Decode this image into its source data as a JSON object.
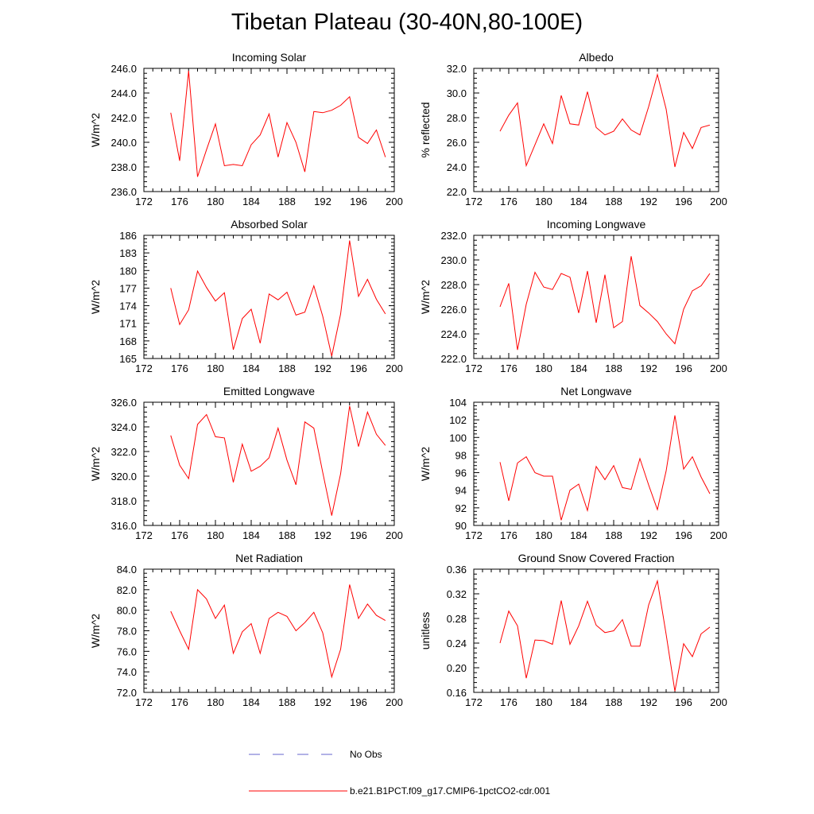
{
  "title": "Tibetan Plateau (30-40N,80-100E)",
  "colors": {
    "series": "#ff0000",
    "obs": "#6666cc",
    "axis": "#000000"
  },
  "legend": {
    "entries": [
      {
        "label": "No Obs",
        "style": "dashed",
        "color": "#6666cc"
      },
      {
        "label": "b.e21.B1PCT.f09_g17.CMIP6-1pctCO2-cdr.001",
        "style": "solid",
        "color": "#ff0000"
      }
    ]
  },
  "chart_data": [
    {
      "type": "line",
      "title": "Incoming Solar",
      "ylabel": "W/m^2",
      "xlim": [
        172,
        200
      ],
      "xticks": [
        "172",
        "176",
        "180",
        "184",
        "188",
        "192",
        "196",
        "200"
      ],
      "ylim": [
        236,
        246
      ],
      "yticks": [
        "236.0",
        "238.0",
        "240.0",
        "242.0",
        "244.0",
        "246.0"
      ],
      "x": [
        175,
        176,
        177,
        178,
        179,
        180,
        181,
        182,
        183,
        184,
        185,
        186,
        187,
        188,
        189,
        190,
        191,
        192,
        193,
        194,
        195,
        196,
        197,
        198,
        199
      ],
      "series": [
        {
          "values": [
            242.4,
            238.5,
            245.8,
            237.2,
            239.4,
            241.5,
            238.1,
            238.2,
            238.1,
            239.8,
            240.6,
            242.3,
            238.8,
            241.6,
            240.0,
            237.6,
            242.5,
            242.4,
            242.6,
            243.0,
            243.7,
            240.4,
            239.9,
            241.0,
            238.8
          ]
        }
      ]
    },
    {
      "type": "line",
      "title": "Albedo",
      "ylabel": "% reflected",
      "xlim": [
        172,
        200
      ],
      "xticks": [
        "172",
        "176",
        "180",
        "184",
        "188",
        "192",
        "196",
        "200"
      ],
      "ylim": [
        22,
        32
      ],
      "yticks": [
        "22.0",
        "24.0",
        "26.0",
        "28.0",
        "30.0",
        "32.0"
      ],
      "x": [
        175,
        176,
        177,
        178,
        179,
        180,
        181,
        182,
        183,
        184,
        185,
        186,
        187,
        188,
        189,
        190,
        191,
        192,
        193,
        194,
        195,
        196,
        197,
        198,
        199
      ],
      "series": [
        {
          "values": [
            26.9,
            28.2,
            29.2,
            24.1,
            25.8,
            27.5,
            25.9,
            29.8,
            27.5,
            27.4,
            30.1,
            27.2,
            26.6,
            26.9,
            27.9,
            27.0,
            26.6,
            28.9,
            31.5,
            28.7,
            24.0,
            26.8,
            25.5,
            27.2,
            27.4
          ]
        }
      ]
    },
    {
      "type": "line",
      "title": "Absorbed Solar",
      "ylabel": "W/m^2",
      "xlim": [
        172,
        200
      ],
      "xticks": [
        "172",
        "176",
        "180",
        "184",
        "188",
        "192",
        "196",
        "200"
      ],
      "ylim": [
        165,
        186
      ],
      "yticks": [
        "165",
        "168",
        "171",
        "174",
        "177",
        "180",
        "183",
        "186"
      ],
      "x": [
        175,
        176,
        177,
        178,
        179,
        180,
        181,
        182,
        183,
        184,
        185,
        186,
        187,
        188,
        189,
        190,
        191,
        192,
        193,
        194,
        195,
        196,
        197,
        198,
        199
      ],
      "series": [
        {
          "values": [
            177.0,
            170.8,
            173.3,
            179.9,
            177.1,
            174.8,
            176.2,
            166.5,
            171.8,
            173.4,
            167.6,
            176.0,
            175.0,
            176.3,
            172.4,
            172.9,
            177.4,
            172.2,
            165.4,
            172.6,
            185.1,
            175.6,
            178.5,
            175.1,
            172.6
          ]
        }
      ]
    },
    {
      "type": "line",
      "title": "Incoming Longwave",
      "ylabel": "W/m^2",
      "xlim": [
        172,
        200
      ],
      "xticks": [
        "172",
        "176",
        "180",
        "184",
        "188",
        "192",
        "196",
        "200"
      ],
      "ylim": [
        222,
        232
      ],
      "yticks": [
        "222.0",
        "224.0",
        "226.0",
        "228.0",
        "230.0",
        "232.0"
      ],
      "x": [
        175,
        176,
        177,
        178,
        179,
        180,
        181,
        182,
        183,
        184,
        185,
        186,
        187,
        188,
        189,
        190,
        191,
        192,
        193,
        194,
        195,
        196,
        197,
        198,
        199
      ],
      "series": [
        {
          "values": [
            226.2,
            228.1,
            222.7,
            226.4,
            229.0,
            227.8,
            227.6,
            228.9,
            228.6,
            225.7,
            229.1,
            224.9,
            228.8,
            224.5,
            225.0,
            230.3,
            226.3,
            225.7,
            225.0,
            224.0,
            223.2,
            226.0,
            227.5,
            227.9,
            228.9
          ]
        }
      ]
    },
    {
      "type": "line",
      "title": "Emitted Longwave",
      "ylabel": "W/m^2",
      "xlim": [
        172,
        200
      ],
      "xticks": [
        "172",
        "176",
        "180",
        "184",
        "188",
        "192",
        "196",
        "200"
      ],
      "ylim": [
        316,
        326
      ],
      "yticks": [
        "316.0",
        "318.0",
        "320.0",
        "322.0",
        "324.0",
        "326.0"
      ],
      "x": [
        175,
        176,
        177,
        178,
        179,
        180,
        181,
        182,
        183,
        184,
        185,
        186,
        187,
        188,
        189,
        190,
        191,
        192,
        193,
        194,
        195,
        196,
        197,
        198,
        199
      ],
      "series": [
        {
          "values": [
            323.3,
            320.9,
            319.8,
            324.2,
            325.0,
            323.2,
            323.1,
            319.5,
            322.6,
            320.4,
            320.8,
            321.5,
            323.9,
            321.3,
            319.3,
            324.4,
            323.9,
            320.3,
            316.8,
            320.2,
            325.7,
            322.4,
            325.2,
            323.4,
            322.5
          ]
        }
      ]
    },
    {
      "type": "line",
      "title": "Net Longwave",
      "ylabel": "W/m^2",
      "xlim": [
        172,
        200
      ],
      "xticks": [
        "172",
        "176",
        "180",
        "184",
        "188",
        "192",
        "196",
        "200"
      ],
      "ylim": [
        90,
        104
      ],
      "yticks": [
        "90",
        "92",
        "94",
        "96",
        "98",
        "100",
        "102",
        "104"
      ],
      "x": [
        175,
        176,
        177,
        178,
        179,
        180,
        181,
        182,
        183,
        184,
        185,
        186,
        187,
        188,
        189,
        190,
        191,
        192,
        193,
        194,
        195,
        196,
        197,
        198,
        199
      ],
      "series": [
        {
          "values": [
            97.2,
            92.8,
            97.1,
            97.8,
            96.0,
            95.6,
            95.6,
            90.6,
            94.0,
            94.7,
            91.7,
            96.7,
            95.2,
            96.8,
            94.3,
            94.1,
            97.6,
            94.6,
            91.8,
            96.2,
            102.5,
            96.4,
            97.8,
            95.5,
            93.6
          ]
        }
      ]
    },
    {
      "type": "line",
      "title": "Net Radiation",
      "ylabel": "W/m^2",
      "xlim": [
        172,
        200
      ],
      "xticks": [
        "172",
        "176",
        "180",
        "184",
        "188",
        "192",
        "196",
        "200"
      ],
      "ylim": [
        72,
        84
      ],
      "yticks": [
        "72.0",
        "74.0",
        "76.0",
        "78.0",
        "80.0",
        "82.0",
        "84.0"
      ],
      "x": [
        175,
        176,
        177,
        178,
        179,
        180,
        181,
        182,
        183,
        184,
        185,
        186,
        187,
        188,
        189,
        190,
        191,
        192,
        193,
        194,
        195,
        196,
        197,
        198,
        199
      ],
      "series": [
        {
          "values": [
            79.9,
            78.0,
            76.2,
            82.0,
            81.1,
            79.2,
            80.5,
            75.8,
            77.9,
            78.7,
            75.8,
            79.2,
            79.8,
            79.4,
            78.0,
            78.8,
            79.8,
            77.8,
            73.5,
            76.2,
            82.5,
            79.2,
            80.6,
            79.5,
            79.0
          ]
        }
      ]
    },
    {
      "type": "line",
      "title": "Ground Snow Covered Fraction",
      "ylabel": "unitless",
      "xlim": [
        172,
        200
      ],
      "xticks": [
        "172",
        "176",
        "180",
        "184",
        "188",
        "192",
        "196",
        "200"
      ],
      "ylim": [
        0.16,
        0.36
      ],
      "yticks": [
        "0.16",
        "0.20",
        "0.24",
        "0.28",
        "0.32",
        "0.36"
      ],
      "x": [
        175,
        176,
        177,
        178,
        179,
        180,
        181,
        182,
        183,
        184,
        185,
        186,
        187,
        188,
        189,
        190,
        191,
        192,
        193,
        194,
        195,
        196,
        197,
        198,
        199
      ],
      "series": [
        {
          "values": [
            0.24,
            0.292,
            0.268,
            0.183,
            0.245,
            0.244,
            0.238,
            0.309,
            0.238,
            0.268,
            0.308,
            0.269,
            0.257,
            0.26,
            0.278,
            0.235,
            0.235,
            0.302,
            0.341,
            0.254,
            0.162,
            0.239,
            0.218,
            0.255,
            0.266
          ]
        }
      ]
    }
  ]
}
